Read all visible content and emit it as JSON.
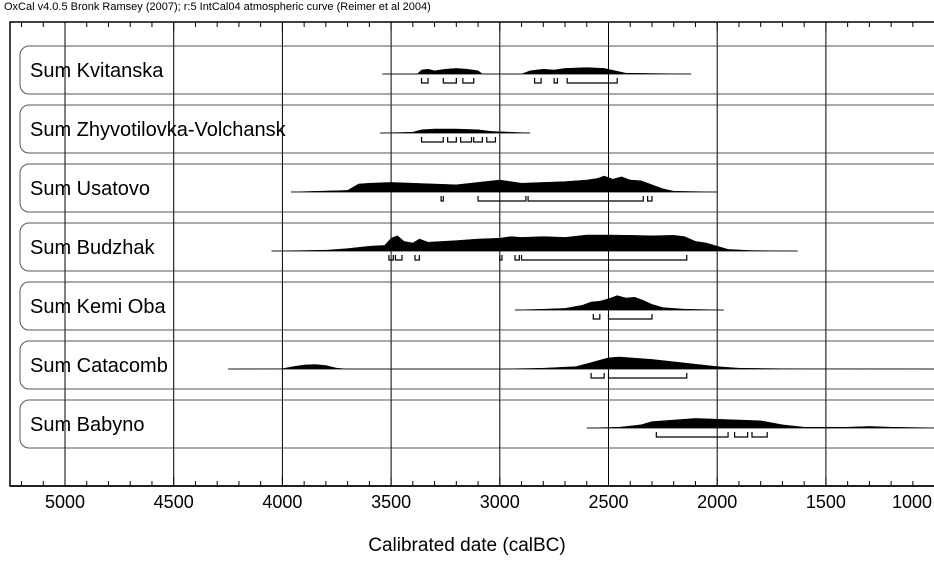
{
  "header": {
    "text": "OxCal v4.0.5 Bronk Ramsey (2007); r:5 IntCal04 atmospheric curve (Reimer et al 2004)"
  },
  "chart_data": {
    "type": "area",
    "title": "",
    "xlabel": "Calibrated date (calBC)",
    "ylabel": "",
    "xlim": [
      5250,
      950
    ],
    "x_reversed": true,
    "x_ticks": [
      5000,
      4500,
      4000,
      3500,
      3000,
      2500,
      2000,
      1500,
      1000
    ],
    "x_minor_tick_step": 100,
    "grid": true,
    "legend": "none",
    "colors": {
      "distribution": "#000000",
      "grid": "#000000",
      "frame": "#000000",
      "row_border": "#555555"
    },
    "series": [
      {
        "name": "Sum Kvitanska",
        "range_start": 3540,
        "range_end": 2120,
        "density": [
          [
            3540,
            0
          ],
          [
            3380,
            0
          ],
          [
            3360,
            0.25
          ],
          [
            3330,
            0.3
          ],
          [
            3300,
            0.2
          ],
          [
            3250,
            0.3
          ],
          [
            3200,
            0.35
          ],
          [
            3150,
            0.3
          ],
          [
            3100,
            0.2
          ],
          [
            3080,
            0
          ],
          [
            2900,
            0
          ],
          [
            2860,
            0.2
          ],
          [
            2800,
            0.3
          ],
          [
            2750,
            0.25
          ],
          [
            2700,
            0.35
          ],
          [
            2600,
            0.4
          ],
          [
            2520,
            0.35
          ],
          [
            2470,
            0.2
          ],
          [
            2420,
            0.05
          ],
          [
            2120,
            0
          ]
        ],
        "hpd_ranges": [
          [
            3360,
            3330
          ],
          [
            3260,
            3200
          ],
          [
            3170,
            3120
          ],
          [
            2840,
            2810
          ],
          [
            2750,
            2735
          ],
          [
            2690,
            2460
          ]
        ]
      },
      {
        "name": "Sum Zhyvotilovka-Volchansk",
        "range_start": 3550,
        "range_end": 2860,
        "density": [
          [
            3550,
            0
          ],
          [
            3400,
            0.05
          ],
          [
            3360,
            0.2
          ],
          [
            3300,
            0.25
          ],
          [
            3200,
            0.25
          ],
          [
            3100,
            0.2
          ],
          [
            3040,
            0.1
          ],
          [
            2950,
            0.05
          ],
          [
            2860,
            0
          ]
        ],
        "hpd_ranges": [
          [
            3360,
            3260
          ],
          [
            3240,
            3200
          ],
          [
            3180,
            3130
          ],
          [
            3120,
            3080
          ],
          [
            3060,
            3020
          ]
        ]
      },
      {
        "name": "Sum Usatovo",
        "range_start": 3960,
        "range_end": 2000,
        "density": [
          [
            3960,
            0
          ],
          [
            3700,
            0.1
          ],
          [
            3650,
            0.5
          ],
          [
            3600,
            0.55
          ],
          [
            3500,
            0.6
          ],
          [
            3400,
            0.55
          ],
          [
            3300,
            0.5
          ],
          [
            3200,
            0.45
          ],
          [
            3100,
            0.6
          ],
          [
            3000,
            0.75
          ],
          [
            2950,
            0.65
          ],
          [
            2900,
            0.55
          ],
          [
            2800,
            0.6
          ],
          [
            2700,
            0.65
          ],
          [
            2600,
            0.75
          ],
          [
            2550,
            0.85
          ],
          [
            2520,
            1.0
          ],
          [
            2480,
            0.8
          ],
          [
            2440,
            0.95
          ],
          [
            2400,
            0.75
          ],
          [
            2350,
            0.7
          ],
          [
            2300,
            0.45
          ],
          [
            2250,
            0.2
          ],
          [
            2200,
            0.05
          ],
          [
            2000,
            0
          ]
        ],
        "hpd_ranges": [
          [
            3270,
            3260
          ],
          [
            3100,
            2880
          ],
          [
            2870,
            2340
          ],
          [
            2320,
            2300
          ]
        ]
      },
      {
        "name": "Sum Budzhak",
        "range_start": 4050,
        "range_end": 1630,
        "density": [
          [
            4050,
            0
          ],
          [
            3800,
            0.05
          ],
          [
            3700,
            0.15
          ],
          [
            3600,
            0.3
          ],
          [
            3530,
            0.35
          ],
          [
            3500,
            0.8
          ],
          [
            3470,
            0.95
          ],
          [
            3440,
            0.6
          ],
          [
            3400,
            0.5
          ],
          [
            3370,
            0.75
          ],
          [
            3330,
            0.55
          ],
          [
            3200,
            0.65
          ],
          [
            3100,
            0.75
          ],
          [
            3000,
            0.8
          ],
          [
            2950,
            0.9
          ],
          [
            2900,
            0.85
          ],
          [
            2800,
            0.9
          ],
          [
            2700,
            0.85
          ],
          [
            2600,
            1.0
          ],
          [
            2500,
            1.0
          ],
          [
            2400,
            0.98
          ],
          [
            2300,
            0.95
          ],
          [
            2200,
            0.98
          ],
          [
            2150,
            0.9
          ],
          [
            2100,
            0.6
          ],
          [
            2050,
            0.5
          ],
          [
            2000,
            0.3
          ],
          [
            1950,
            0.1
          ],
          [
            1850,
            0.03
          ],
          [
            1630,
            0
          ]
        ],
        "hpd_ranges": [
          [
            3510,
            3490
          ],
          [
            3480,
            3450
          ],
          [
            3390,
            3370
          ],
          [
            3000,
            2990
          ],
          [
            2930,
            2910
          ],
          [
            2900,
            2140
          ]
        ]
      },
      {
        "name": "Sum Kemi Oba",
        "range_start": 2930,
        "range_end": 1970,
        "density": [
          [
            2930,
            0
          ],
          [
            2800,
            0.05
          ],
          [
            2700,
            0.1
          ],
          [
            2620,
            0.3
          ],
          [
            2580,
            0.5
          ],
          [
            2540,
            0.55
          ],
          [
            2500,
            0.7
          ],
          [
            2460,
            0.9
          ],
          [
            2420,
            0.75
          ],
          [
            2380,
            0.8
          ],
          [
            2340,
            0.6
          ],
          [
            2300,
            0.35
          ],
          [
            2250,
            0.15
          ],
          [
            2150,
            0.05
          ],
          [
            1970,
            0
          ]
        ],
        "hpd_ranges": [
          [
            2570,
            2540
          ],
          [
            2500,
            2300
          ]
        ]
      },
      {
        "name": "Sum Catacomb",
        "range_start": 4250,
        "range_end": 950,
        "density": [
          [
            4250,
            0
          ],
          [
            4000,
            0.02
          ],
          [
            3950,
            0.15
          ],
          [
            3900,
            0.25
          ],
          [
            3850,
            0.28
          ],
          [
            3800,
            0.22
          ],
          [
            3750,
            0.05
          ],
          [
            3700,
            0
          ],
          [
            3000,
            0
          ],
          [
            2800,
            0.05
          ],
          [
            2650,
            0.15
          ],
          [
            2580,
            0.4
          ],
          [
            2540,
            0.55
          ],
          [
            2500,
            0.7
          ],
          [
            2450,
            0.75
          ],
          [
            2400,
            0.7
          ],
          [
            2300,
            0.6
          ],
          [
            2200,
            0.45
          ],
          [
            2100,
            0.3
          ],
          [
            2000,
            0.15
          ],
          [
            1900,
            0.05
          ],
          [
            1700,
            0.02
          ],
          [
            950,
            0
          ]
        ],
        "hpd_ranges": [
          [
            2580,
            2520
          ],
          [
            2500,
            2140
          ]
        ]
      },
      {
        "name": "Sum Babyno",
        "range_start": 2600,
        "range_end": 950,
        "density": [
          [
            2600,
            0
          ],
          [
            2450,
            0.05
          ],
          [
            2350,
            0.2
          ],
          [
            2300,
            0.4
          ],
          [
            2200,
            0.5
          ],
          [
            2100,
            0.6
          ],
          [
            2000,
            0.55
          ],
          [
            1900,
            0.5
          ],
          [
            1800,
            0.45
          ],
          [
            1700,
            0.2
          ],
          [
            1600,
            0.05
          ],
          [
            1400,
            0.05
          ],
          [
            1300,
            0.1
          ],
          [
            1200,
            0.05
          ],
          [
            950,
            0
          ]
        ],
        "hpd_ranges": [
          [
            2280,
            1950
          ],
          [
            1920,
            1860
          ],
          [
            1840,
            1770
          ]
        ]
      }
    ]
  }
}
